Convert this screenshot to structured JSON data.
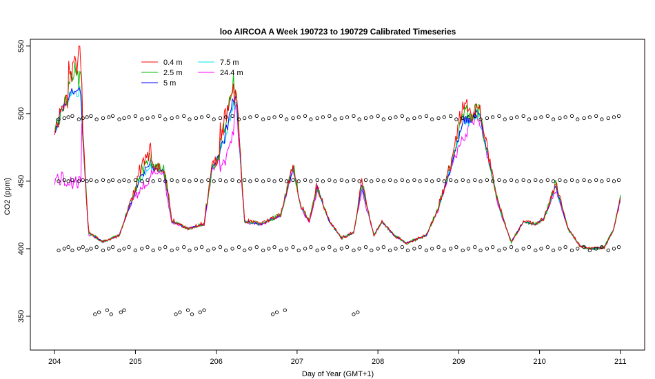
{
  "chart_data": {
    "type": "line",
    "title": "loo AIRCOA A  Week 190723 to 190729  Calibrated Timeseries",
    "xlabel": "Day of Year (GMT+1)",
    "ylabel": "CO2 (ppm)",
    "xlim": [
      203.7,
      211.3
    ],
    "ylim": [
      325,
      555
    ],
    "x_ticks": [
      204,
      205,
      206,
      207,
      208,
      209,
      210,
      211
    ],
    "y_ticks": [
      350,
      400,
      450,
      500,
      550
    ],
    "legend": {
      "placement": "top-left"
    },
    "series": [
      {
        "name": "0.4 m",
        "color": "#ff0000",
        "offset": [
          0,
          16,
          2,
          26,
          1,
          7,
          18,
          2,
          14,
          3,
          17,
          1,
          18,
          4,
          14,
          3,
          4,
          3,
          9,
          2,
          16,
          3,
          10,
          4,
          8,
          8,
          2,
          6,
          3,
          10,
          4,
          2,
          7,
          3,
          4,
          2,
          9,
          3,
          4,
          1,
          7
        ]
      },
      {
        "name": "2.5 m",
        "color": "#00bb00",
        "offset": [
          0,
          12,
          1,
          20,
          2,
          5,
          14,
          1,
          10,
          2,
          14,
          1,
          14,
          3,
          10,
          2,
          3,
          2,
          7,
          1,
          12,
          2,
          8,
          3,
          6,
          6,
          1,
          5,
          2,
          8,
          3,
          1,
          5,
          2,
          3,
          1,
          7,
          2,
          3,
          1,
          5
        ]
      },
      {
        "name": "5 m",
        "color": "#0000ff",
        "offset": [
          0,
          4,
          -1,
          8,
          0,
          2,
          6,
          0,
          4,
          0,
          6,
          0,
          6,
          1,
          4,
          1,
          1,
          0,
          3,
          0,
          5,
          1,
          3,
          1,
          2,
          2,
          0,
          2,
          1,
          3,
          1,
          0,
          2,
          1,
          1,
          0,
          3,
          0,
          1,
          0,
          2
        ]
      },
      {
        "name": "7.5 m",
        "color": "#00e5ee",
        "offset": [
          0,
          3,
          0,
          5,
          0,
          1,
          4,
          0,
          3,
          0,
          4,
          0,
          4,
          0,
          3,
          0,
          0,
          0,
          2,
          0,
          3,
          0,
          2,
          0,
          1,
          1,
          0,
          1,
          0,
          2,
          0,
          0,
          1,
          0,
          0,
          0,
          2,
          0,
          0,
          0,
          1
        ]
      },
      {
        "name": "24.4 m",
        "color": "#ff00ff",
        "offset": [
          -40,
          -4,
          -6,
          -10,
          -2,
          -4,
          -10,
          -4,
          -8,
          -4,
          -8,
          -2,
          -10,
          -3,
          -8,
          -3,
          -2,
          -2,
          -5,
          -2,
          -8,
          -2,
          -6,
          -2,
          -4,
          -4,
          -2,
          -3,
          -2,
          -5,
          -2,
          -2,
          -3,
          -2,
          -2,
          -2,
          -4,
          -2,
          -2,
          -2,
          -3
        ]
      }
    ],
    "base_curve": {
      "x": [
        204.0,
        204.1,
        204.2,
        204.32,
        204.42,
        204.6,
        204.8,
        204.92,
        205.05,
        205.2,
        205.35,
        205.45,
        205.65,
        205.85,
        205.95,
        206.1,
        206.25,
        206.35,
        206.55,
        206.8,
        206.95,
        207.05,
        207.15,
        207.25,
        207.4,
        207.55,
        207.7,
        207.8,
        207.95,
        208.05,
        208.2,
        208.35,
        208.6,
        208.75,
        208.9,
        209.05,
        209.25,
        209.5,
        209.65,
        209.8,
        209.95,
        210.05,
        210.2,
        210.35,
        210.5,
        210.65,
        210.8,
        210.92,
        211.0
      ],
      "y": [
        486,
        505,
        510,
        512,
        412,
        405,
        410,
        430,
        448,
        460,
        458,
        420,
        415,
        418,
        460,
        475,
        510,
        420,
        418,
        425,
        460,
        430,
        420,
        445,
        420,
        408,
        412,
        445,
        410,
        420,
        410,
        404,
        410,
        430,
        460,
        490,
        500,
        430,
        405,
        420,
        418,
        422,
        445,
        415,
        402,
        400,
        401,
        415,
        437
      ]
    },
    "calibration_points": {
      "x": [
        204.05,
        204.12,
        204.17,
        204.22,
        204.3,
        204.35,
        204.4,
        204.45,
        204.52,
        204.6,
        204.67,
        204.72,
        204.8,
        204.86,
        204.92,
        205.0,
        205.08,
        205.15,
        205.22,
        205.3,
        205.37,
        205.45,
        205.52,
        205.6,
        205.67,
        205.75,
        205.82,
        205.9,
        205.97,
        206.05,
        206.12,
        206.2,
        206.28,
        206.35,
        206.42,
        206.5,
        206.58,
        206.65,
        206.72,
        206.8,
        206.87,
        206.95,
        207.02,
        207.1,
        207.17,
        207.25,
        207.32,
        207.4,
        207.47,
        207.55,
        207.62,
        207.7,
        207.77,
        207.85,
        207.92,
        208.0,
        208.07,
        208.15,
        208.22,
        208.3,
        208.37,
        208.45,
        208.52,
        208.6,
        208.67,
        208.75,
        208.82,
        208.9,
        208.97,
        209.05,
        209.12,
        209.2,
        209.27,
        209.35,
        209.42,
        209.5,
        209.57,
        209.65,
        209.72,
        209.8,
        209.87,
        209.95,
        210.02,
        210.1,
        210.17,
        210.25,
        210.32,
        210.4,
        210.47,
        210.55,
        210.62,
        210.7,
        210.77,
        210.85,
        210.92,
        210.98
      ],
      "levels": [
        400,
        450,
        497
      ],
      "low_x": [
        204.5,
        204.55,
        204.65,
        204.7,
        204.82,
        204.86,
        205.5,
        205.55,
        205.65,
        205.7,
        205.8,
        205.85,
        206.7,
        206.75,
        206.85,
        207.7,
        207.75
      ]
    }
  },
  "legend_labels": [
    "0.4 m",
    "2.5 m",
    "5 m",
    "7.5 m",
    "24.4 m"
  ]
}
